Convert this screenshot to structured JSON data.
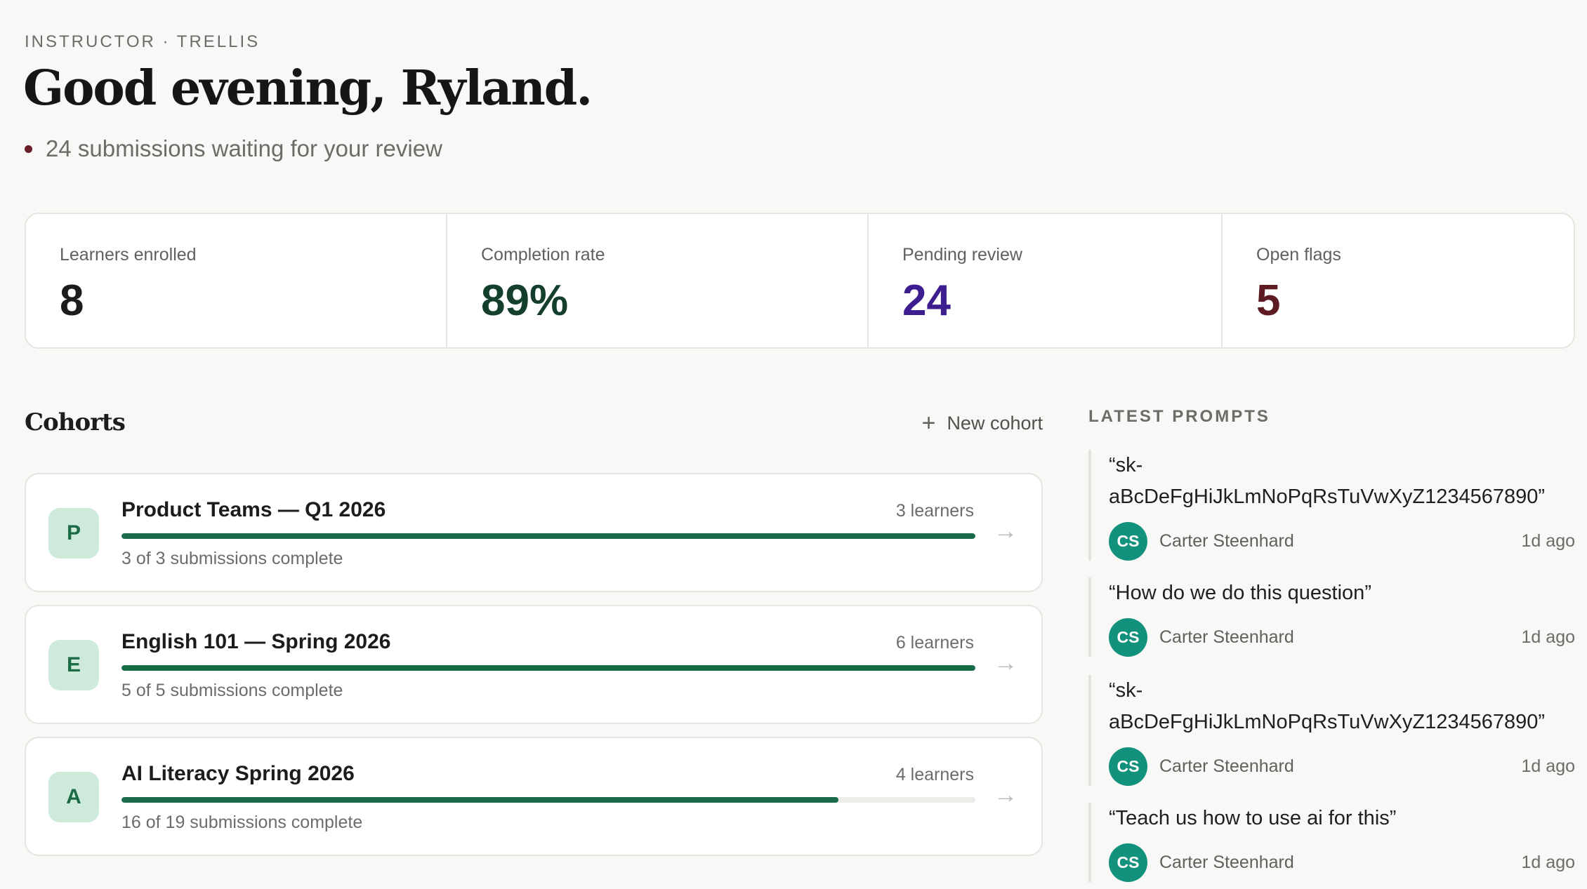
{
  "header": {
    "eyebrow": "INSTRUCTOR · TRELLIS",
    "greeting": "Good evening, Ryland.",
    "pending_text": "24 submissions waiting for your review"
  },
  "stats": [
    {
      "label": "Learners enrolled",
      "value": "8",
      "color": "#1c1c1a"
    },
    {
      "label": "Completion rate",
      "value": "89%",
      "color": "#143f2c"
    },
    {
      "label": "Pending review",
      "value": "24",
      "color": "#3d1d8f"
    },
    {
      "label": "Open flags",
      "value": "5",
      "color": "#5c1a22"
    }
  ],
  "cohorts": {
    "title": "Cohorts",
    "new_label": "New cohort",
    "items": [
      {
        "initial": "P",
        "name": "Product Teams — Q1 2026",
        "learners": "3 learners",
        "progress": "3 of 3 submissions complete",
        "percent": 100
      },
      {
        "initial": "E",
        "name": "English 101 — Spring 2026",
        "learners": "6 learners",
        "progress": "5 of 5 submissions complete",
        "percent": 100
      },
      {
        "initial": "A",
        "name": "AI Literacy Spring 2026",
        "learners": "4 learners",
        "progress": "16 of 19 submissions complete",
        "percent": 84
      }
    ]
  },
  "prompts": {
    "title": "LATEST PROMPTS",
    "items": [
      {
        "text": "“sk-aBcDeFgHiJkLmNoPqRsTuVwXyZ1234567890”",
        "initials": "CS",
        "author": "Carter Steenhard",
        "time": "1d ago"
      },
      {
        "text": "“How do we do this question”",
        "initials": "CS",
        "author": "Carter Steenhard",
        "time": "1d ago"
      },
      {
        "text": "“sk-aBcDeFgHiJkLmNoPqRsTuVwXyZ1234567890”",
        "initials": "CS",
        "author": "Carter Steenhard",
        "time": "1d ago"
      },
      {
        "text": "“Teach us how to use ai for this”",
        "initials": "CS",
        "author": "Carter Steenhard",
        "time": "1d ago"
      }
    ]
  }
}
